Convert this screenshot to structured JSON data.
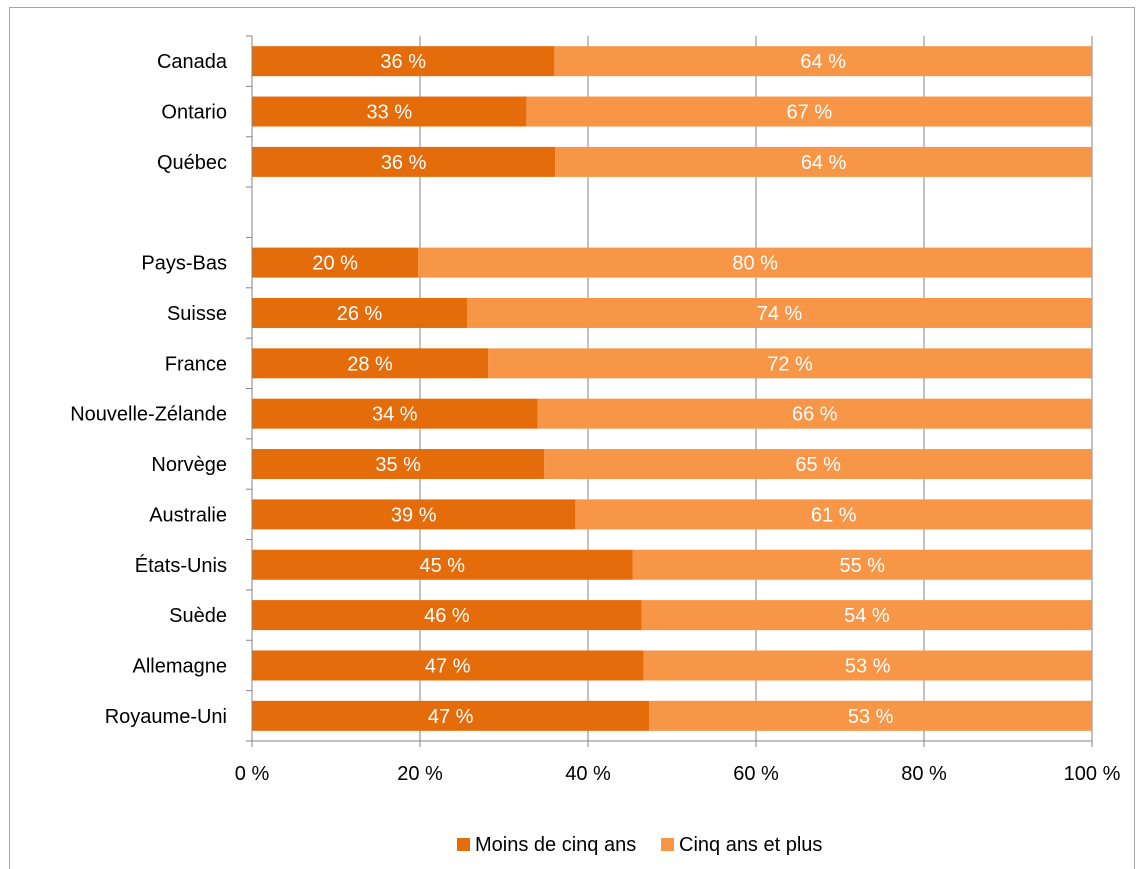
{
  "chart_data": {
    "type": "bar",
    "orientation": "horizontal",
    "stacked": true,
    "categories": [
      "Canada",
      "Ontario",
      "Québec",
      "",
      "Pays-Bas",
      "Suisse",
      "France",
      "Nouvelle-Zélande",
      "Norvège",
      "Australie",
      "États-Unis",
      "Suède",
      "Allemagne",
      "Royaume-Uni"
    ],
    "series": [
      {
        "name": "Moins de cinq ans",
        "color": "#e46c0a",
        "values": [
          36,
          32.7,
          36.1,
          null,
          19.8,
          25.6,
          28.1,
          34,
          34.8,
          38.5,
          45.3,
          46.4,
          46.6,
          47.3
        ],
        "labels": [
          "36 %",
          "33 %",
          "36 %",
          "",
          "20 %",
          "26 %",
          "28 %",
          "34 %",
          "35 %",
          "39 %",
          "45 %",
          "46 %",
          "47 %",
          "47 %"
        ]
      },
      {
        "name": "Cinq ans et plus",
        "color": "#f79646",
        "values": [
          64,
          67.3,
          63.9,
          null,
          80.2,
          74.4,
          71.9,
          66,
          65.2,
          61.5,
          54.7,
          53.6,
          53.4,
          52.7
        ],
        "labels": [
          "64 %",
          "67 %",
          "64 %",
          "",
          "80 %",
          "74 %",
          "72 %",
          "66 %",
          "65 %",
          "61 %",
          "55 %",
          "54 %",
          "53 %",
          "53 %"
        ]
      }
    ],
    "xlim": [
      0,
      100
    ],
    "x_ticks": [
      0,
      20,
      40,
      60,
      80,
      100
    ],
    "x_tick_labels": [
      "0 %",
      "20 %",
      "40 %",
      "60 %",
      "80 %",
      "100 %"
    ],
    "grid": "vertical",
    "legend_position": "bottom",
    "title": "",
    "xlabel": "",
    "ylabel": ""
  }
}
